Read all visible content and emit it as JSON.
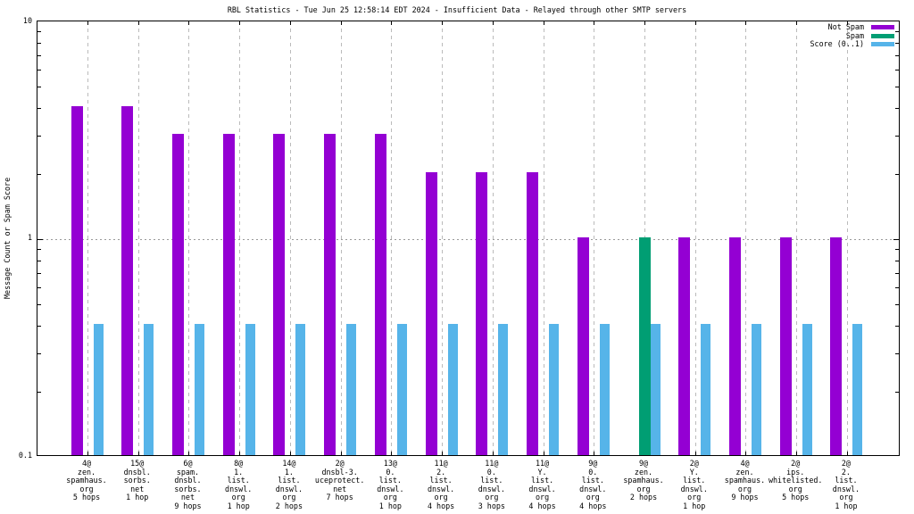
{
  "chart_data": {
    "type": "bar",
    "title": "RBL Statistics - Tue Jun 25 12:58:14 EDT 2024 - Insufficient Data - Relayed through other SMTP servers",
    "xlabel": "",
    "ylabel": "Message Count or Spam Score",
    "yscale": "log",
    "ylim": [
      0.1,
      10
    ],
    "ytick_labels": [
      "10",
      "1",
      "0.1"
    ],
    "grid": "dashed vertical line at each category; dotted horizontal line at y=1; minor log tick marks on left and right borders",
    "legend_position": "top-right-inside",
    "categories": [
      [
        "4@",
        "zen.",
        "spamhaus.",
        "org",
        "5 hops"
      ],
      [
        "15@",
        "dnsbl.",
        "sorbs.",
        "net",
        "1 hop"
      ],
      [
        "6@",
        "spam.",
        "dnsbl.",
        "sorbs.",
        "net",
        "9 hops"
      ],
      [
        "8@",
        "1.",
        "list.",
        "dnswl.",
        "org",
        "1 hop"
      ],
      [
        "14@",
        "1.",
        "list.",
        "dnswl.",
        "org",
        "2 hops"
      ],
      [
        "2@",
        "dnsbl-3.",
        "uceprotect.",
        "net",
        "7 hops"
      ],
      [
        "13@",
        "0.",
        "list.",
        "dnswl.",
        "org",
        "1 hop"
      ],
      [
        "11@",
        "2.",
        "list.",
        "dnswl.",
        "org",
        "4 hops"
      ],
      [
        "11@",
        "0.",
        "list.",
        "dnswl.",
        "org",
        "3 hops"
      ],
      [
        "11@",
        "Y.",
        "list.",
        "dnswl.",
        "org",
        "4 hops"
      ],
      [
        "9@",
        "0.",
        "list.",
        "dnswl.",
        "org",
        "4 hops"
      ],
      [
        "9@",
        "zen.",
        "spamhaus.",
        "org",
        "2 hops"
      ],
      [
        "2@",
        "Y.",
        "list.",
        "dnswl.",
        "org",
        "1 hop"
      ],
      [
        "4@",
        "zen.",
        "spamhaus.",
        "org",
        "9 hops"
      ],
      [
        "2@",
        "ips.",
        "whitelisted.",
        "org",
        "5 hops"
      ],
      [
        "2@",
        "2.",
        "list.",
        "dnswl.",
        "org",
        "1 hop"
      ]
    ],
    "series": [
      {
        "name": "Not Spam",
        "color": "#9400d3",
        "values": [
          4,
          4,
          3,
          3,
          3,
          3,
          3,
          2,
          2,
          2,
          1,
          0,
          1,
          1,
          1,
          1
        ]
      },
      {
        "name": "Spam",
        "color": "#009e73",
        "values": [
          0,
          0,
          0,
          0,
          0,
          0,
          0,
          0,
          0,
          0,
          0,
          1,
          0,
          0,
          0,
          0
        ]
      },
      {
        "name": "Score (0..1)",
        "color": "#56b4e9",
        "values": [
          0.4,
          0.4,
          0.4,
          0.4,
          0.4,
          0.4,
          0.4,
          0.4,
          0.4,
          0.4,
          0.4,
          0.4,
          0.4,
          0.4,
          0.4,
          0.4
        ]
      }
    ]
  }
}
